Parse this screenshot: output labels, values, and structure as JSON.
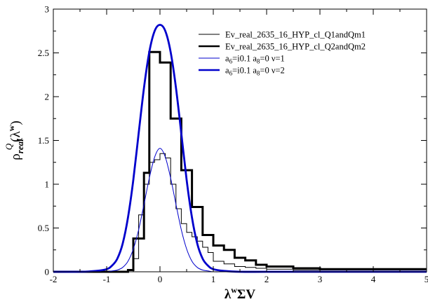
{
  "chart_data": {
    "type": "line",
    "xlim": [
      -2,
      5
    ],
    "ylim": [
      0,
      3
    ],
    "x_ticks": [
      "-2",
      "-1",
      "0",
      "1",
      "2",
      "3",
      "4",
      "5"
    ],
    "y_ticks": [
      "0",
      "0.5",
      "1",
      "1.5",
      "2",
      "2.5",
      "3"
    ],
    "xlabel": {
      "base": "λ",
      "sup": "w",
      "rest": "ΣV"
    },
    "ylabel": {
      "rho": "ρ",
      "sub": "real",
      "sup": "Q",
      "lam": "(λ",
      "w": "w",
      "close": ")"
    },
    "grid": false,
    "legend_position": "top-right",
    "legend": [
      {
        "label": "Ev_real_2635_16_HYP_cl_Q1andQm1",
        "color": "#000000",
        "width": 1
      },
      {
        "label": "Ev_real_2635_16_HYP_cl_Q2andQm2",
        "color": "#000000",
        "width": 2.5
      },
      {
        "label_parts": [
          "a",
          "6",
          "=i0.1 a",
          "8",
          "=0 ν=1"
        ],
        "color": "#0000cc",
        "width": 1
      },
      {
        "label_parts": [
          "a",
          "6",
          "=i0.1 a",
          "8",
          "=0 ν=2"
        ],
        "color": "#0000cc",
        "width": 2.5
      }
    ],
    "series": [
      {
        "name": "Ev_real_2635_16_HYP_cl_Q1andQm1",
        "kind": "step",
        "color": "#000000",
        "edges": [
          -2.0,
          -0.5,
          -0.4,
          -0.3,
          -0.2,
          -0.1,
          0.0,
          0.1,
          0.2,
          0.3,
          0.4,
          0.5,
          0.6,
          0.7,
          0.8,
          0.9,
          1.0,
          1.2,
          1.4,
          1.6,
          1.8,
          2.0,
          2.5,
          3.0,
          5.0
        ],
        "values": [
          0.0,
          0.15,
          0.65,
          1.0,
          1.25,
          1.28,
          1.35,
          1.3,
          1.0,
          0.72,
          0.55,
          0.45,
          0.4,
          0.35,
          0.28,
          0.22,
          0.12,
          0.09,
          0.06,
          0.05,
          0.04,
          0.03,
          0.02,
          0.02
        ]
      },
      {
        "name": "Ev_real_2635_16_HYP_cl_Q2andQm2",
        "kind": "step",
        "color": "#000000",
        "edges": [
          -2.0,
          -0.6,
          -0.5,
          -0.3,
          -0.2,
          0.0,
          0.2,
          0.4,
          0.6,
          0.8,
          1.0,
          1.2,
          1.4,
          1.6,
          1.8,
          2.0,
          2.5,
          3.0,
          5.0
        ],
        "values": [
          0.0,
          0.02,
          0.38,
          1.13,
          2.51,
          2.39,
          1.75,
          1.16,
          0.74,
          0.42,
          0.3,
          0.25,
          0.16,
          0.13,
          0.08,
          0.06,
          0.04,
          0.03
        ]
      },
      {
        "name": "a6=i0.1 a8=0 ν=1",
        "kind": "curve",
        "color": "#0000cc",
        "x": [
          -2.0,
          -1.5,
          -1.2,
          -1.0,
          -0.9,
          -0.8,
          -0.7,
          -0.6,
          -0.5,
          -0.4,
          -0.3,
          -0.2,
          -0.1,
          0.0,
          0.1,
          0.2,
          0.3,
          0.4,
          0.5,
          0.6,
          0.7,
          0.8,
          0.9,
          1.0,
          1.2,
          1.5,
          2.0,
          3.0,
          4.0,
          5.0
        ],
        "y": [
          0.0,
          0.0,
          0.0,
          0.0,
          0.01,
          0.02,
          0.05,
          0.12,
          0.26,
          0.48,
          0.77,
          1.07,
          1.31,
          1.41,
          1.31,
          1.07,
          0.77,
          0.48,
          0.26,
          0.12,
          0.05,
          0.02,
          0.01,
          0.0,
          0.0,
          0.0,
          0.0,
          0.0,
          0.0,
          0.0
        ]
      },
      {
        "name": "a6=i0.1 a8=0 ν=2",
        "kind": "curve",
        "color": "#0000cc",
        "x": [
          -2.0,
          -1.5,
          -1.2,
          -1.0,
          -0.9,
          -0.8,
          -0.7,
          -0.6,
          -0.5,
          -0.4,
          -0.3,
          -0.2,
          -0.1,
          0.0,
          0.1,
          0.2,
          0.3,
          0.4,
          0.5,
          0.6,
          0.7,
          0.8,
          0.9,
          1.0,
          1.2,
          1.5,
          2.0,
          3.0,
          4.0,
          5.0
        ],
        "y": [
          0.0,
          0.0,
          0.01,
          0.03,
          0.07,
          0.15,
          0.32,
          0.62,
          1.05,
          1.58,
          2.1,
          2.51,
          2.75,
          2.82,
          2.75,
          2.51,
          2.1,
          1.58,
          1.05,
          0.62,
          0.32,
          0.15,
          0.07,
          0.03,
          0.01,
          0.0,
          0.0,
          0.0,
          0.0,
          0.0
        ]
      }
    ]
  }
}
